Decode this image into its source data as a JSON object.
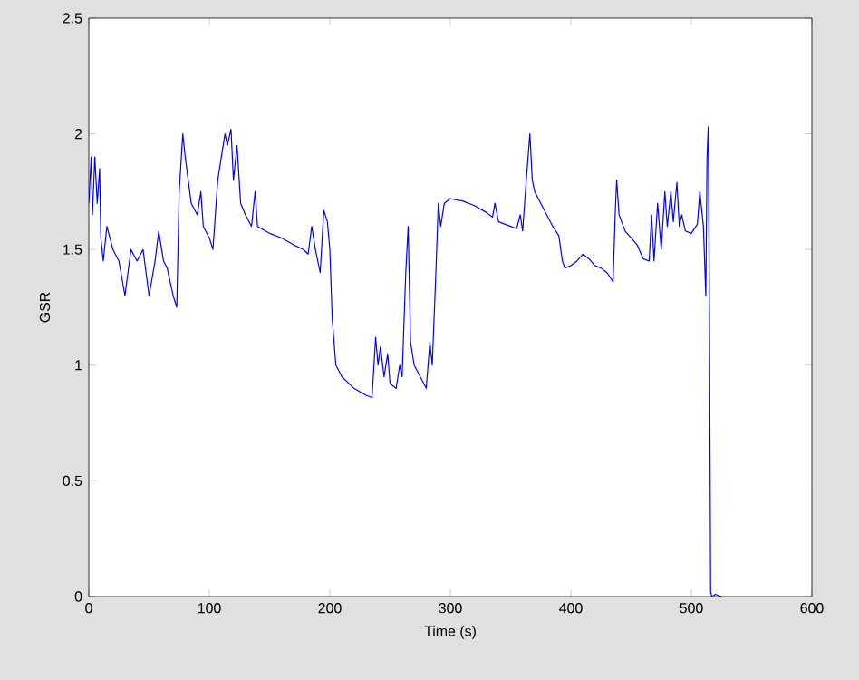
{
  "chart_data": {
    "type": "line",
    "xlabel": "Time (s)",
    "ylabel": "GSR",
    "xlim": [
      0,
      600
    ],
    "ylim": [
      0,
      2.5
    ],
    "xticks": [
      0,
      100,
      200,
      300,
      400,
      500,
      600
    ],
    "yticks": [
      0,
      0.5,
      1,
      1.5,
      2,
      2.5
    ],
    "series": [
      {
        "color": "#0000ff",
        "x": [
          0,
          2,
          3,
          5,
          7,
          9,
          10,
          12,
          15,
          20,
          25,
          30,
          35,
          40,
          45,
          50,
          55,
          58,
          62,
          65,
          70,
          73,
          75,
          78,
          80,
          85,
          90,
          93,
          95,
          100,
          103,
          107,
          110,
          113,
          115,
          118,
          120,
          123,
          126,
          130,
          135,
          138,
          140,
          150,
          160,
          170,
          178,
          182,
          185,
          188,
          192,
          195,
          198,
          200,
          202,
          205,
          210,
          220,
          230,
          235,
          238,
          240,
          242,
          245,
          248,
          250,
          255,
          258,
          260,
          263,
          265,
          267,
          270,
          275,
          280,
          283,
          285,
          288,
          290,
          292,
          295,
          300,
          310,
          320,
          330,
          335,
          337,
          340,
          350,
          355,
          358,
          360,
          363,
          366,
          368,
          370,
          375,
          380,
          385,
          390,
          393,
          395,
          400,
          405,
          410,
          415,
          420,
          425,
          430,
          435,
          437,
          438,
          440,
          445,
          450,
          455,
          460,
          465,
          467,
          469,
          472,
          475,
          478,
          480,
          483,
          485,
          488,
          490,
          492,
          495,
          500,
          505,
          507,
          510,
          512,
          513,
          514,
          515,
          516,
          517,
          520,
          525
        ],
        "values": [
          1.7,
          1.9,
          1.65,
          1.9,
          1.7,
          1.85,
          1.55,
          1.45,
          1.6,
          1.5,
          1.45,
          1.3,
          1.5,
          1.45,
          1.5,
          1.3,
          1.45,
          1.58,
          1.45,
          1.42,
          1.3,
          1.25,
          1.75,
          2.0,
          1.9,
          1.7,
          1.65,
          1.75,
          1.6,
          1.55,
          1.5,
          1.8,
          1.9,
          2.0,
          1.95,
          2.02,
          1.8,
          1.95,
          1.7,
          1.65,
          1.6,
          1.75,
          1.6,
          1.57,
          1.55,
          1.52,
          1.5,
          1.48,
          1.6,
          1.5,
          1.4,
          1.67,
          1.62,
          1.5,
          1.2,
          1.0,
          0.95,
          0.9,
          0.87,
          0.86,
          1.12,
          1.0,
          1.08,
          0.95,
          1.05,
          0.92,
          0.9,
          1.0,
          0.95,
          1.4,
          1.6,
          1.1,
          1.0,
          0.95,
          0.9,
          1.1,
          1.0,
          1.4,
          1.7,
          1.6,
          1.7,
          1.72,
          1.71,
          1.69,
          1.66,
          1.64,
          1.7,
          1.62,
          1.6,
          1.59,
          1.65,
          1.58,
          1.8,
          2.0,
          1.8,
          1.75,
          1.7,
          1.65,
          1.6,
          1.56,
          1.45,
          1.42,
          1.43,
          1.45,
          1.48,
          1.46,
          1.43,
          1.42,
          1.4,
          1.36,
          1.68,
          1.8,
          1.65,
          1.58,
          1.55,
          1.52,
          1.46,
          1.45,
          1.65,
          1.45,
          1.7,
          1.5,
          1.75,
          1.6,
          1.75,
          1.62,
          1.79,
          1.6,
          1.65,
          1.58,
          1.57,
          1.61,
          1.75,
          1.6,
          1.3,
          1.9,
          2.03,
          1.2,
          0.02,
          0,
          0.01,
          0
        ]
      }
    ]
  }
}
